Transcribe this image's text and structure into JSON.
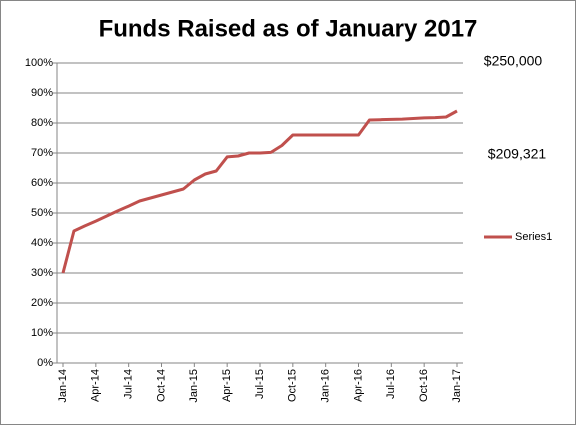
{
  "chart_data": {
    "type": "line",
    "title": "Funds Raised as of January 2017",
    "categories": [
      "Jan-14",
      null,
      null,
      "Apr-14",
      null,
      null,
      "Jul-14",
      null,
      null,
      "Oct-14",
      null,
      null,
      "Jan-15",
      null,
      null,
      "Apr-15",
      null,
      null,
      "Jul-15",
      null,
      null,
      "Oct-15",
      null,
      null,
      "Jan-16",
      null,
      null,
      "Apr-16",
      null,
      null,
      "Jul-16",
      null,
      null,
      "Oct-16",
      null,
      null,
      "Jan-17"
    ],
    "series": [
      {
        "name": "Series1",
        "color": "#c0504d",
        "values": [
          30,
          44,
          45.7,
          47.3,
          49,
          50.7,
          52.3,
          54,
          55,
          56,
          57,
          58,
          61,
          63,
          64,
          68.7,
          69,
          70,
          70,
          70.2,
          72.5,
          76,
          76,
          76,
          76,
          76,
          76,
          76,
          81,
          81.1,
          81.2,
          81.3,
          81.5,
          81.7,
          81.8,
          82,
          84
        ]
      }
    ],
    "ylim": [
      0,
      100
    ],
    "yticks": [
      {
        "value": 0,
        "label": "0%"
      },
      {
        "value": 10,
        "label": "10%"
      },
      {
        "value": 20,
        "label": "20%"
      },
      {
        "value": 30,
        "label": "30%"
      },
      {
        "value": 40,
        "label": "40%"
      },
      {
        "value": 50,
        "label": "50%"
      },
      {
        "value": 60,
        "label": "60%"
      },
      {
        "value": 70,
        "label": "70%"
      },
      {
        "value": 80,
        "label": "80%"
      },
      {
        "value": 90,
        "label": "90%"
      },
      {
        "value": 100,
        "label": "100%"
      }
    ],
    "grid": true,
    "legend": "right",
    "annotations": [
      "$250,000",
      "$209,321"
    ]
  }
}
